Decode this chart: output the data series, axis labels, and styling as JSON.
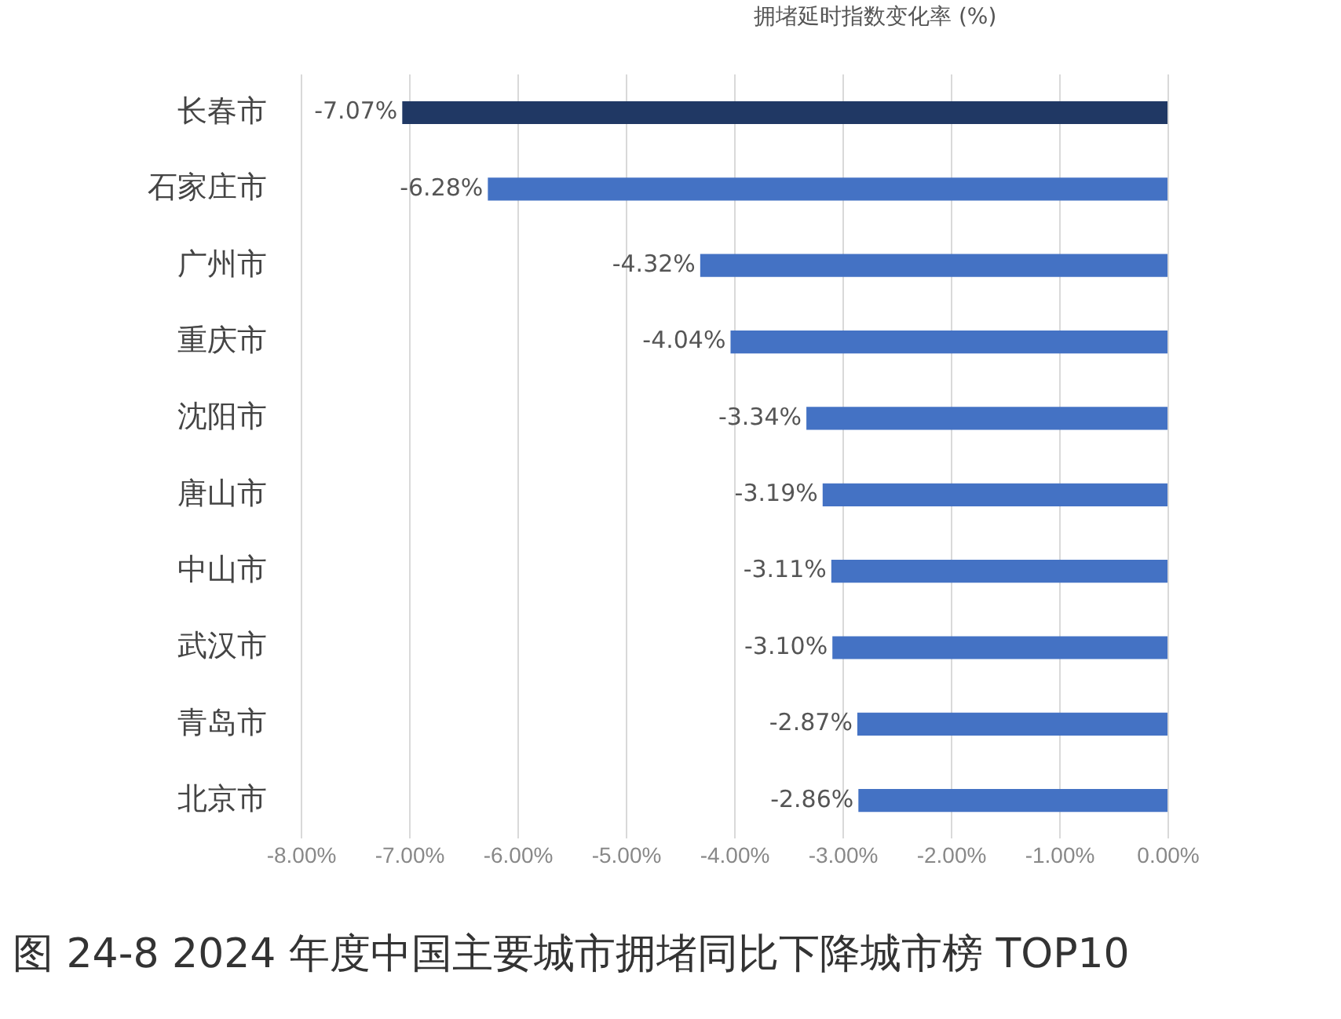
{
  "chart_data": {
    "type": "bar",
    "orientation": "horizontal",
    "xlabel": "拥堵延时指数变化率 (%)",
    "categories": [
      "长春市",
      "石家庄市",
      "广州市",
      "重庆市",
      "沈阳市",
      "唐山市",
      "中山市",
      "武汉市",
      "青岛市",
      "北京市"
    ],
    "values": [
      -7.07,
      -6.28,
      -4.32,
      -4.04,
      -3.34,
      -3.19,
      -3.11,
      -3.1,
      -2.87,
      -2.86
    ],
    "colors": [
      "#203864",
      "#4472c4",
      "#4472c4",
      "#4472c4",
      "#4472c4",
      "#4472c4",
      "#4472c4",
      "#4472c4",
      "#4472c4",
      "#4472c4"
    ],
    "value_labels": [
      "-7.07%",
      "-6.28%",
      "-4.32%",
      "-4.04%",
      "-3.34%",
      "-3.19%",
      "-3.11%",
      "-3.10%",
      "-2.87%",
      "-2.86%"
    ],
    "xlim": [
      -8,
      0
    ],
    "xticks": [
      {
        "value": -8,
        "label": "-8.00%"
      },
      {
        "value": -7,
        "label": "-7.00%"
      },
      {
        "value": -6,
        "label": "-6.00%"
      },
      {
        "value": -5,
        "label": "-5.00%"
      },
      {
        "value": -4,
        "label": "-4.00%"
      },
      {
        "value": -3,
        "label": "-3.00%"
      },
      {
        "value": -2,
        "label": "-2.00%"
      },
      {
        "value": -1,
        "label": "-1.00%"
      },
      {
        "value": 0,
        "label": "0.00%"
      }
    ],
    "grid": "x",
    "legend": false,
    "annotations": [
      "图 24-8  2024 年度中国主要城市拥堵同比下降城市榜 TOP10"
    ]
  }
}
